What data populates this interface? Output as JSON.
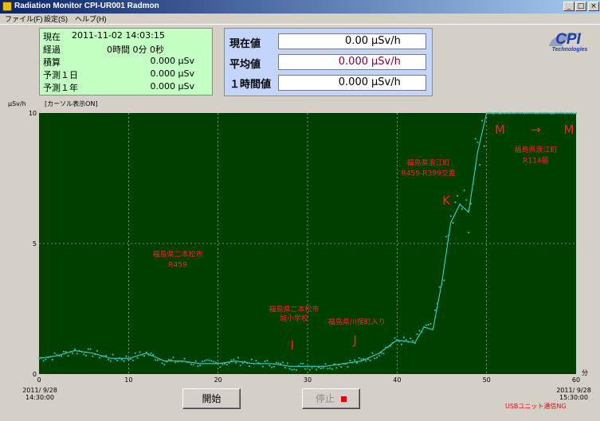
{
  "window": {
    "title": "Radiation Monitor CPI-UR001 Radmon",
    "controls": [
      "_",
      "□",
      "×"
    ]
  },
  "menu": [
    {
      "label": "ファイル(F)"
    },
    {
      "label": "設定(S)"
    },
    {
      "label": "ヘルプ(H)"
    }
  ],
  "info": {
    "now_label": "現在",
    "now_value": "2011-11-02 14:03:15",
    "elapsed_label": "経過",
    "elapsed_value": "0時間 0分 0秒",
    "total_label": "積算",
    "total_value": "0.000 μSv",
    "pred_day_label": "予測１日",
    "pred_day_value": "0.000 μSv",
    "pred_year_label": "予測１年",
    "pred_year_value": "0.000 μSv"
  },
  "readout": {
    "current_label": "現在値",
    "current_value": "0.00",
    "current_color": "#000000",
    "average_label": "平均値",
    "average_value": "0.000",
    "average_color": "#800040",
    "hour_label": "１時間値",
    "hour_value": "0.000",
    "hour_color": "#000000",
    "unit": "μSv/h"
  },
  "logo": {
    "text": "CPI",
    "subtext": "Technologies",
    "color": "#1A3FA8"
  },
  "chart_data": {
    "type": "scatter",
    "ylabel": "μSv/h",
    "xlabel": "分",
    "cursor_label": "[カーソル表示ON]",
    "xlim": [
      0,
      60
    ],
    "ylim": [
      0,
      10
    ],
    "x_ticks": [
      0,
      10,
      20,
      30,
      40,
      50,
      60
    ],
    "y_ticks": [
      0,
      5,
      10
    ],
    "x_tick_labels": [
      "0",
      "10",
      "20",
      "30",
      "40",
      "50",
      "60"
    ],
    "y_tick_labels": [
      "0",
      "5",
      "10"
    ],
    "grid": true,
    "background": "#003F00",
    "series": [
      {
        "x": [
          0,
          2,
          4,
          6,
          8,
          10,
          12,
          14,
          16,
          18,
          20,
          22,
          24,
          26,
          28,
          30,
          32,
          34,
          36,
          38,
          40,
          42,
          43,
          44,
          45,
          46,
          47,
          48,
          49,
          50,
          52,
          55,
          60
        ],
        "values": [
          0.6,
          0.7,
          0.9,
          0.8,
          0.6,
          0.6,
          0.8,
          0.5,
          0.5,
          0.4,
          0.4,
          0.5,
          0.4,
          0.4,
          0.3,
          0.3,
          0.3,
          0.4,
          0.5,
          0.8,
          1.3,
          1.2,
          1.8,
          1.7,
          3.5,
          5.8,
          6.5,
          6.2,
          8.5,
          10.0,
          10.0,
          10.0,
          10.0
        ]
      }
    ],
    "annotations": [
      {
        "text": "福島県二本松市",
        "x": 15.5,
        "y": 4.5
      },
      {
        "text": "R459",
        "x": 15.5,
        "y": 4.1
      },
      {
        "text": "福島県二本松市",
        "x": 28.5,
        "y": 2.4
      },
      {
        "text": "旭小学校",
        "x": 28.5,
        "y": 2.05
      },
      {
        "text": "福島県川俣町入り",
        "x": 35.5,
        "y": 1.9
      },
      {
        "text": "福島県浪江町",
        "x": 43.5,
        "y": 8.0
      },
      {
        "text": "R459-R399交差",
        "x": 43.5,
        "y": 7.6
      },
      {
        "text": "福島県浪江町",
        "x": 55.5,
        "y": 8.5
      },
      {
        "text": "R114脇",
        "x": 55.5,
        "y": 8.1
      }
    ],
    "markers": [
      {
        "text": "I",
        "x": 28.3,
        "y": 0.95
      },
      {
        "text": "J",
        "x": 35.3,
        "y": 1.15
      },
      {
        "text": "K",
        "x": 45.5,
        "y": 6.5
      },
      {
        "text": "M",
        "x": 51.5,
        "y": 9.2
      },
      {
        "text": "→",
        "x": 55.5,
        "y": 9.2
      },
      {
        "text": "M",
        "x": 59.2,
        "y": 9.2
      }
    ]
  },
  "time_axis": {
    "start_date": "2011/ 9/28",
    "start_time": "14:30:00",
    "end_date": "2011/ 9/28",
    "end_time": "15:30:00"
  },
  "buttons": {
    "start_label": "開始",
    "stop_label": "停止"
  },
  "status": {
    "usb": "USBユニット通信NG"
  }
}
